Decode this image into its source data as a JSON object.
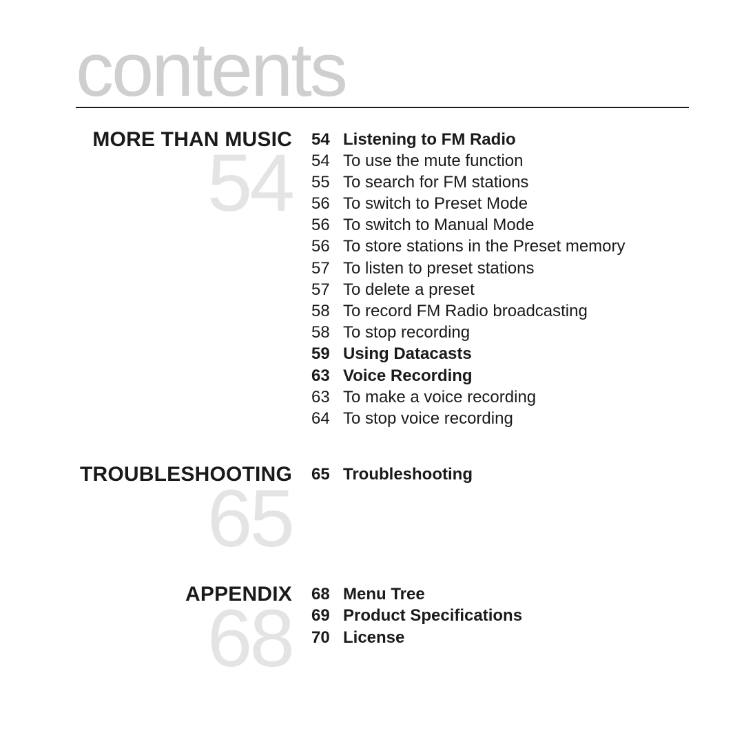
{
  "title": "contents",
  "sections": [
    {
      "heading": "MORE THAN MUSIC",
      "bignum": "54",
      "entries": [
        {
          "page": "54",
          "text": "Listening to FM Radio",
          "bold": true
        },
        {
          "page": "54",
          "text": "To use the mute function",
          "bold": false
        },
        {
          "page": "55",
          "text": "To search for FM stations",
          "bold": false
        },
        {
          "page": "56",
          "text": "To switch to Preset Mode",
          "bold": false
        },
        {
          "page": "56",
          "text": "To switch to Manual Mode",
          "bold": false
        },
        {
          "page": "56",
          "text": "To store stations in the Preset memory",
          "bold": false
        },
        {
          "page": "57",
          "text": "To listen to preset stations",
          "bold": false
        },
        {
          "page": "57",
          "text": "To delete a preset",
          "bold": false
        },
        {
          "page": "58",
          "text": "To record FM Radio broadcasting",
          "bold": false
        },
        {
          "page": "58",
          "text": "To stop recording",
          "bold": false
        },
        {
          "page": "59",
          "text": "Using Datacasts",
          "bold": true
        },
        {
          "page": "63",
          "text": "Voice Recording",
          "bold": true
        },
        {
          "page": "63",
          "text": "To make a voice recording",
          "bold": false
        },
        {
          "page": "64",
          "text": "To stop voice recording",
          "bold": false
        }
      ]
    },
    {
      "heading": "TROUBLESHOOTING",
      "bignum": "65",
      "entries": [
        {
          "page": "65",
          "text": "Troubleshooting",
          "bold": true
        }
      ]
    },
    {
      "heading": "APPENDIX",
      "bignum": "68",
      "entries": [
        {
          "page": "68",
          "text": "Menu Tree",
          "bold": true
        },
        {
          "page": "69",
          "text": "Product Specifications",
          "bold": true
        },
        {
          "page": "70",
          "text": "License",
          "bold": true
        }
      ]
    }
  ]
}
